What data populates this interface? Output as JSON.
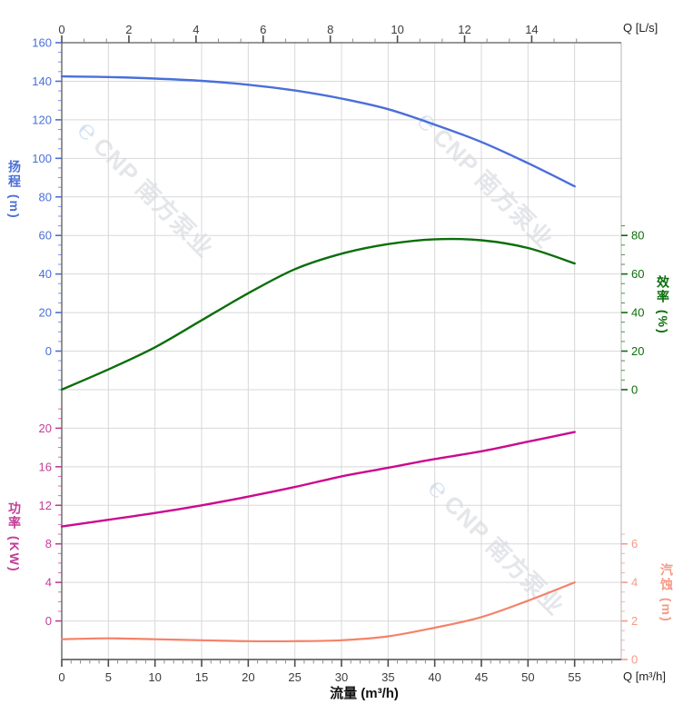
{
  "page": {
    "watermark": {
      "symbol": "℮",
      "text": "CNP 南方泵业"
    }
  },
  "chart_data": {
    "type": "line",
    "title": "",
    "grid": true,
    "legend": "none",
    "x_axis_bottom": {
      "label": "流量 (m³/h)",
      "unit": "Q [m³/h]",
      "ticks": [
        0,
        5,
        10,
        15,
        20,
        25,
        30,
        35,
        40,
        45,
        50,
        55
      ],
      "range": [
        0,
        60
      ],
      "minor_step": 1,
      "color": "#3c3c3c"
    },
    "x_axis_top": {
      "unit": "Q [L/s]",
      "ticks": [
        0,
        2,
        4,
        6,
        8,
        10,
        12,
        14
      ],
      "range": [
        0,
        16.667
      ],
      "unit_to_m3h": 3.6,
      "minor_step": 0.6667,
      "color": "#3c3c3c"
    },
    "y_axes": [
      {
        "id": "head",
        "label": "扬程 (m)",
        "side": "left",
        "color": "#4a6fd8",
        "ticks": [
          160,
          140,
          120,
          100,
          80,
          60,
          40,
          20,
          0
        ],
        "first_row": 0,
        "minor_divisions": 4,
        "minor_row_start": 0,
        "minor_row_end": 9
      },
      {
        "id": "efficiency",
        "label": "效率 (%)",
        "side": "right",
        "color": "#0b6e0b",
        "ticks": [
          80,
          60,
          40,
          20,
          0
        ],
        "first_row": 5,
        "minor_divisions": 4,
        "minor_row_start": 4.75,
        "minor_row_end": 9
      },
      {
        "id": "power",
        "label": "功率 (KW)",
        "side": "left",
        "color": "#c23d98",
        "ticks": [
          20,
          16,
          12,
          8,
          4,
          0
        ],
        "first_row": 10,
        "minor_divisions": 4,
        "minor_row_start": 9.5,
        "minor_row_end": 15
      },
      {
        "id": "npsh",
        "label": "汽蚀 (m)",
        "side": "right",
        "color": "#f59a86",
        "ticks": [
          6,
          4,
          2,
          0
        ],
        "first_row": 13,
        "minor_divisions": 4,
        "minor_row_start": 12.75,
        "minor_row_end": 16
      }
    ],
    "series": [
      {
        "name": "head-curve",
        "axis": "head",
        "color": "#4a6edb",
        "width": 2.4,
        "q": [
          0,
          5,
          10,
          15,
          20,
          25,
          30,
          35,
          40,
          45,
          50,
          55
        ],
        "v": [
          142.5,
          142.2,
          141.4,
          140.2,
          138.2,
          135.2,
          131.0,
          125.5,
          117.5,
          108.5,
          97.5,
          85.5
        ]
      },
      {
        "name": "efficiency-curve",
        "axis": "efficiency",
        "color": "#0b6e0b",
        "width": 2.4,
        "q": [
          0,
          5,
          10,
          15,
          20,
          25,
          30,
          35,
          40,
          45,
          50,
          55
        ],
        "v": [
          0,
          10.5,
          22,
          36,
          50,
          62.5,
          70.5,
          75.5,
          78,
          77.5,
          73.5,
          65.5
        ]
      },
      {
        "name": "power-curve",
        "axis": "power",
        "color": "#cb0a8e",
        "width": 2.4,
        "q": [
          0,
          5,
          10,
          15,
          20,
          25,
          30,
          35,
          40,
          45,
          50,
          55
        ],
        "v": [
          9.8,
          10.5,
          11.2,
          12.0,
          12.9,
          13.9,
          15.0,
          15.9,
          16.8,
          17.6,
          18.6,
          19.6
        ]
      },
      {
        "name": "npsh-curve",
        "axis": "npsh",
        "color": "#f58168",
        "width": 2.2,
        "q": [
          0,
          5,
          10,
          15,
          20,
          25,
          30,
          35,
          40,
          45,
          50,
          55
        ],
        "v": [
          1.05,
          1.1,
          1.05,
          1.0,
          0.95,
          0.95,
          1.0,
          1.2,
          1.65,
          2.2,
          3.05,
          4.0
        ]
      }
    ]
  }
}
